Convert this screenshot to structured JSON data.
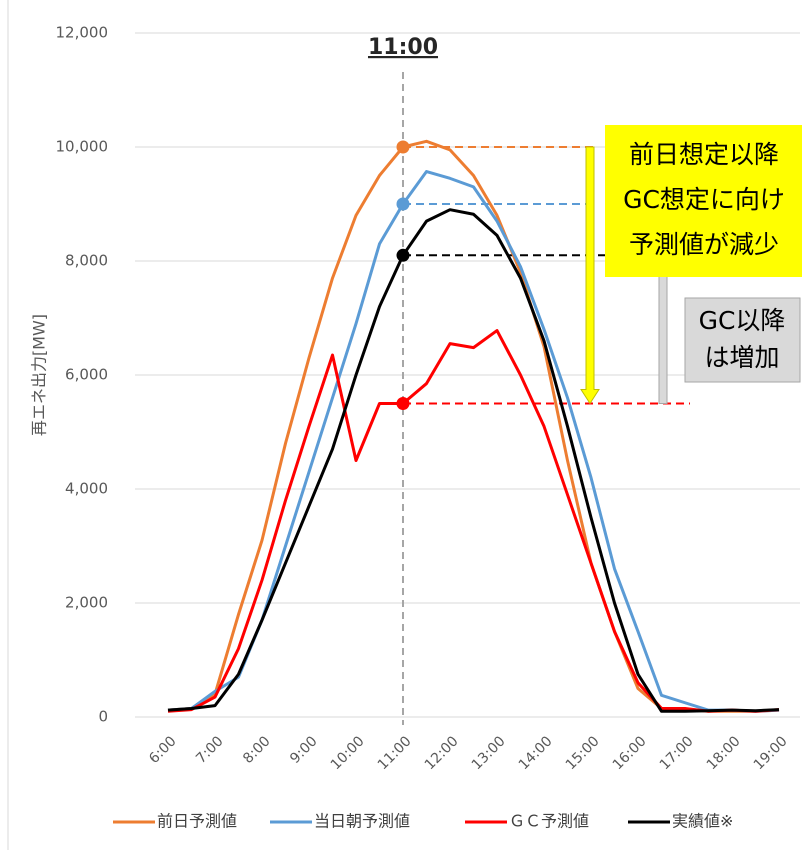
{
  "chart_data": {
    "type": "line",
    "y_label": "再エネ出力[MW]",
    "categories": [
      "6:00",
      null,
      "7:00",
      null,
      "8:00",
      null,
      "9:00",
      null,
      "10:00",
      null,
      "11:00",
      null,
      "12:00",
      null,
      "13:00",
      null,
      "14:00",
      null,
      "15:00",
      null,
      "16:00",
      null,
      "17:00",
      null,
      "18:00",
      null,
      "19:00"
    ],
    "series": [
      {
        "name": "前日予測値",
        "color": "#ed7d31",
        "values": [
          120,
          150,
          400,
          1800,
          3100,
          4800,
          6300,
          7700,
          8800,
          9500,
          10000,
          10100,
          9950,
          9500,
          8800,
          7800,
          6500,
          4500,
          2700,
          1500,
          500,
          150,
          130,
          100,
          100,
          100,
          120
        ]
      },
      {
        "name": "当日朝予測値",
        "color": "#5b9bd5",
        "values": [
          120,
          150,
          450,
          700,
          1700,
          3000,
          4300,
          5600,
          6900,
          8300,
          9000,
          9570,
          9450,
          9300,
          8700,
          7900,
          6800,
          5600,
          4200,
          2600,
          1500,
          380,
          250,
          120,
          120,
          100,
          120
        ]
      },
      {
        "name": "ＧＣ予測値",
        "color": "#ff0000",
        "values": [
          100,
          130,
          350,
          1200,
          2400,
          3800,
          5100,
          6350,
          4500,
          5500,
          5500,
          5850,
          6550,
          6480,
          6780,
          6000,
          5100,
          3900,
          2700,
          1500,
          600,
          150,
          150,
          100,
          120,
          100,
          130
        ]
      },
      {
        "name": "実績値※",
        "color": "#000000",
        "values": [
          120,
          150,
          200,
          750,
          1700,
          2700,
          3700,
          4700,
          6000,
          7200,
          8100,
          8700,
          8900,
          8820,
          8450,
          7700,
          6600,
          5100,
          3500,
          2000,
          750,
          100,
          100,
          110,
          120,
          110,
          130
        ]
      }
    ],
    "ylim": [
      0,
      12000
    ],
    "yticks": [
      0,
      {
        "value": 2000,
        "label": "2,000"
      },
      {
        "value": 4000,
        "label": "4,000"
      },
      {
        "value": 6000,
        "label": "6,000"
      },
      {
        "value": 8000,
        "label": "8,000"
      },
      {
        "value": 10000,
        "label": "10,000"
      },
      {
        "value": 12000,
        "label": "12,000"
      }
    ],
    "grid": true,
    "annotations": {
      "highlight": "11:00",
      "decrease_note": [
        "前日想定以降",
        "GC想定に向け",
        "予測値が減少"
      ],
      "increase_note": [
        "GC以降",
        "は増加"
      ]
    }
  }
}
